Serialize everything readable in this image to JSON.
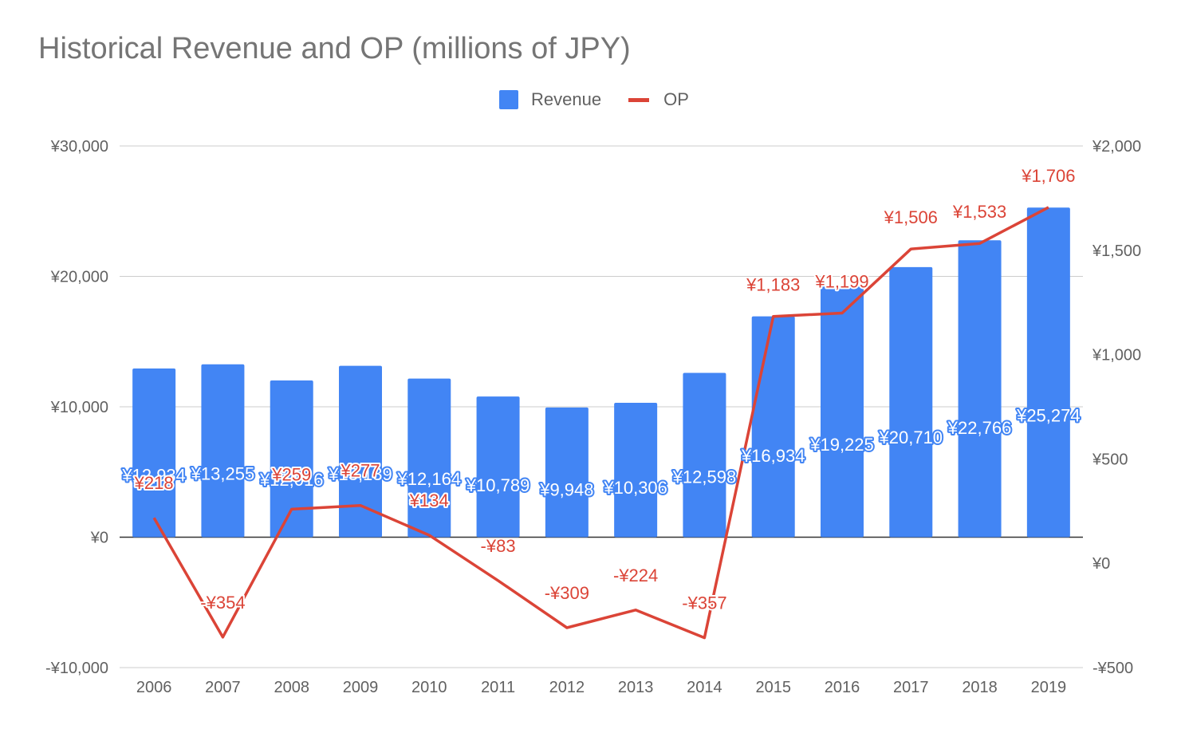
{
  "chart_data": {
    "type": "bar+line",
    "title": "Historical Revenue and OP (millions of JPY)",
    "categories": [
      "2006",
      "2007",
      "2008",
      "2009",
      "2010",
      "2011",
      "2012",
      "2013",
      "2014",
      "2015",
      "2016",
      "2017",
      "2018",
      "2019"
    ],
    "series": [
      {
        "name": "Revenue",
        "type": "bar",
        "axis": "left",
        "color": "#4285f4",
        "values": [
          12934,
          13255,
          12016,
          13139,
          12164,
          10789,
          9948,
          10306,
          12598,
          16934,
          19225,
          20710,
          22766,
          25274
        ],
        "labels": [
          "¥12,934",
          "¥13,255",
          "¥12,016",
          "¥13,139",
          "¥12,164",
          "¥10,789",
          "¥9,948",
          "¥10,306",
          "¥12,598",
          "¥16,934",
          "¥19,225",
          "¥20,710",
          "¥22,766",
          "¥25,274"
        ]
      },
      {
        "name": "OP",
        "type": "line",
        "axis": "right",
        "color": "#db4437",
        "values": [
          218,
          -354,
          259,
          277,
          134,
          -83,
          -309,
          -224,
          -357,
          1183,
          1199,
          1506,
          1533,
          1706
        ],
        "labels": [
          "¥218",
          "-¥354",
          "¥259",
          "¥277",
          "¥134",
          "-¥83",
          "-¥309",
          "-¥224",
          "-¥357",
          "¥1,183",
          "¥1,199",
          "¥1,506",
          "¥1,533",
          "¥1,706"
        ]
      }
    ],
    "left_axis": {
      "min": -10000,
      "max": 30000,
      "ticks": [
        30000,
        20000,
        10000,
        0,
        -10000
      ],
      "tick_labels": [
        "¥30,000",
        "¥20,000",
        "¥10,000",
        "¥0",
        "-¥10,000"
      ]
    },
    "right_axis": {
      "min": -500,
      "max": 2000,
      "ticks": [
        2000,
        1500,
        1000,
        500,
        0,
        -500
      ],
      "tick_labels": [
        "¥2,000",
        "¥1,500",
        "¥1,000",
        "¥500",
        "¥0",
        "-¥500"
      ]
    },
    "legend": {
      "position": "top",
      "items": [
        "Revenue",
        "OP"
      ]
    },
    "grid": true
  }
}
